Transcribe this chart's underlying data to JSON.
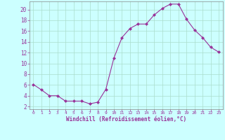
{
  "x": [
    0,
    1,
    2,
    3,
    4,
    5,
    6,
    7,
    8,
    9,
    10,
    11,
    12,
    13,
    14,
    15,
    16,
    17,
    18,
    19,
    20,
    21,
    22,
    23
  ],
  "y": [
    6.1,
    5.1,
    4.0,
    4.0,
    3.0,
    3.0,
    3.0,
    2.5,
    2.8,
    5.2,
    11.0,
    14.8,
    16.5,
    17.3,
    17.3,
    19.0,
    20.2,
    21.0,
    21.0,
    18.2,
    16.2,
    14.8,
    13.0,
    12.1
  ],
  "line_color": "#993399",
  "marker": "D",
  "marker_size": 2,
  "bg_color": "#ccffff",
  "grid_color": "#aaddcc",
  "xlabel": "Windchill (Refroidissement éolien,°C)",
  "xlabel_color": "#993399",
  "tick_label_color": "#993399",
  "ylim": [
    1.5,
    21.5
  ],
  "xlim": [
    -0.5,
    23.5
  ],
  "yticks": [
    2,
    4,
    6,
    8,
    10,
    12,
    14,
    16,
    18,
    20
  ],
  "xticks": [
    0,
    1,
    2,
    3,
    4,
    5,
    6,
    7,
    8,
    9,
    10,
    11,
    12,
    13,
    14,
    15,
    16,
    17,
    18,
    19,
    20,
    21,
    22,
    23
  ],
  "font_family": "monospace"
}
